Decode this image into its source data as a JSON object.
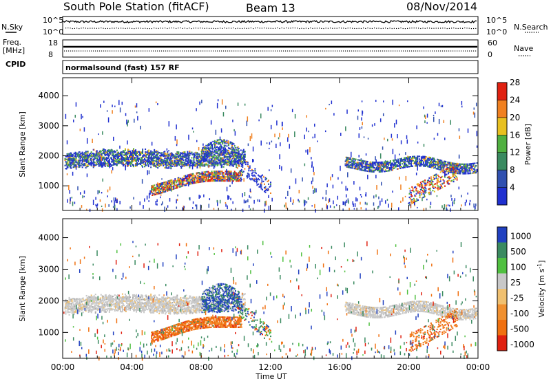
{
  "header": {
    "station": "South Pole Station (fitACF)",
    "beam": "Beam 13",
    "date": "08/Nov/2014"
  },
  "side_labels": {
    "nsky": "N.Sky",
    "freq_line1": "Freq.",
    "freq_line2": "[MHz]",
    "cpid": "CPID",
    "nsearch": "N.Search",
    "nave": "Nave",
    "cpid_text": "normalsound (fast) 157 RF"
  },
  "noise_panel": {
    "left_ticks": [
      "10^5",
      "10^0"
    ],
    "right_ticks": [
      "10^5",
      "10^0"
    ]
  },
  "freq_panel": {
    "left_ticks": [
      "18",
      "8"
    ],
    "right_ticks": [
      "60",
      "0"
    ]
  },
  "chart_data": [
    {
      "type": "heatmap",
      "name": "power",
      "ylabel": "Slant Range [km]",
      "ylim": [
        180,
        4600
      ],
      "yticks": [
        "1000",
        "2000",
        "3000",
        "4000"
      ],
      "colorbar_label": "Power [dB]",
      "colorbar_ticks": [
        "4",
        "8",
        "12",
        "16",
        "20",
        "24",
        "28"
      ],
      "colors": [
        "#2030d0",
        "#3050b0",
        "#3a8a60",
        "#50b040",
        "#e8c020",
        "#f08020",
        "#e02010"
      ]
    },
    {
      "type": "heatmap",
      "name": "velocity",
      "ylabel": "Slant Range [km]",
      "ylim": [
        180,
        4600
      ],
      "yticks": [
        "1000",
        "2000",
        "3000",
        "4000"
      ],
      "colorbar_label": "Velocity  [m s",
      "colorbar_sup": "-1",
      "colorbar_ticks": [
        "1000",
        "500",
        "100",
        "25",
        "-25",
        "-100",
        "-500",
        "-1000"
      ],
      "colors": [
        "#2040c0",
        "#3a8a60",
        "#50c040",
        "#c8c8c8",
        "#f0c070",
        "#f09030",
        "#f07010",
        "#e02010"
      ]
    }
  ],
  "xaxis": {
    "ticks": [
      "00:00",
      "04:00",
      "08:00",
      "12:00",
      "16:00",
      "20:00",
      "00:00"
    ],
    "label": "Time UT"
  }
}
